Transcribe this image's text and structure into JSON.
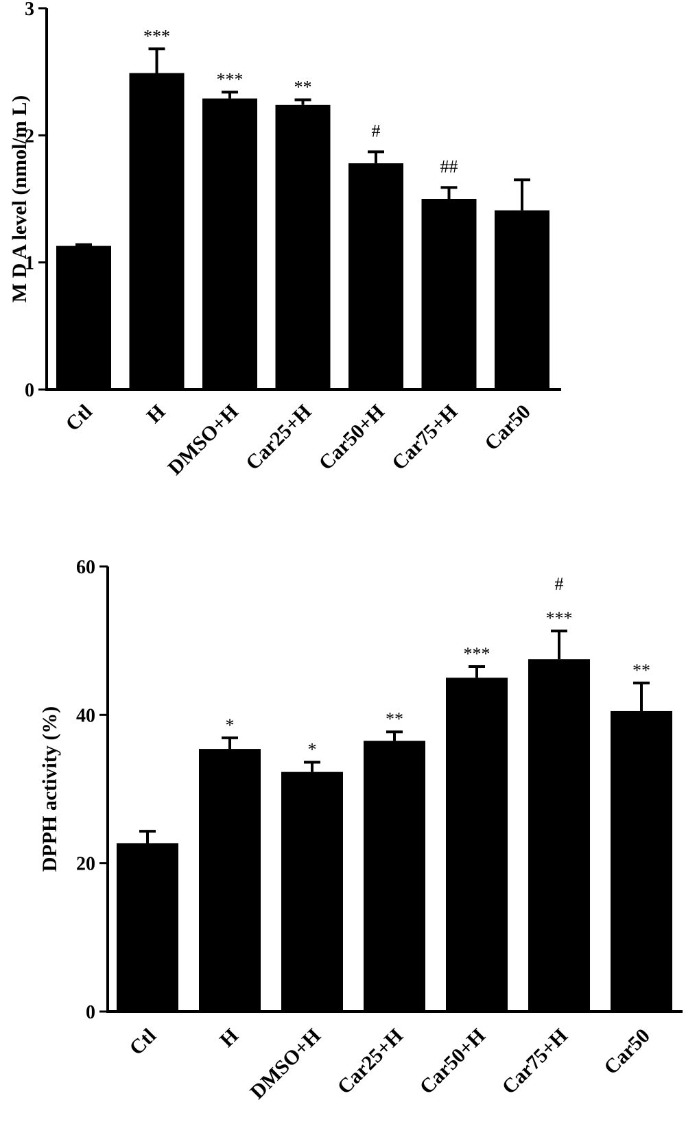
{
  "chart_data": [
    {
      "type": "bar",
      "ylabel": "M D A  level (nmol/m L)",
      "ylim": [
        0,
        3
      ],
      "yticks": [
        "0",
        "1",
        "2",
        "3"
      ],
      "categories": [
        "Ctl",
        "H",
        "DMSO+H",
        "Car25+H",
        "Car50+H",
        "Car75+H",
        "Car50"
      ],
      "values": [
        1.13,
        2.49,
        2.29,
        2.24,
        1.78,
        1.5,
        1.41
      ],
      "errors": [
        0.01,
        0.19,
        0.05,
        0.04,
        0.09,
        0.09,
        0.24
      ],
      "annotations": [
        {
          "category": "H",
          "lines": [
            "***"
          ]
        },
        {
          "category": "DMSO+H",
          "lines": [
            "***"
          ]
        },
        {
          "category": "Car25+H",
          "lines": [
            "**"
          ]
        },
        {
          "category": "Car50+H",
          "lines": [
            "#"
          ]
        },
        {
          "category": "Car75+H",
          "lines": [
            "##"
          ]
        }
      ]
    },
    {
      "type": "bar",
      "ylabel": "DPPH activity (%)",
      "ylim": [
        0,
        60
      ],
      "yticks": [
        "0",
        "20",
        "40",
        "60"
      ],
      "categories": [
        "Ctl",
        "H",
        "DMSO+H",
        "Car25+H",
        "Car50+H",
        "Car75+H",
        "Car50"
      ],
      "values": [
        22.7,
        35.4,
        32.3,
        36.5,
        45.0,
        47.5,
        40.5
      ],
      "errors": [
        1.6,
        1.5,
        1.3,
        1.2,
        1.5,
        3.8,
        3.8
      ],
      "annotations": [
        {
          "category": "H",
          "lines": [
            "*"
          ]
        },
        {
          "category": "DMSO+H",
          "lines": [
            "*"
          ]
        },
        {
          "category": "Car25+H",
          "lines": [
            "**"
          ]
        },
        {
          "category": "Car50+H",
          "lines": [
            "***"
          ]
        },
        {
          "category": "Car75+H",
          "lines": [
            "#",
            "***"
          ]
        },
        {
          "category": "Car50",
          "lines": [
            "**"
          ]
        }
      ]
    }
  ]
}
